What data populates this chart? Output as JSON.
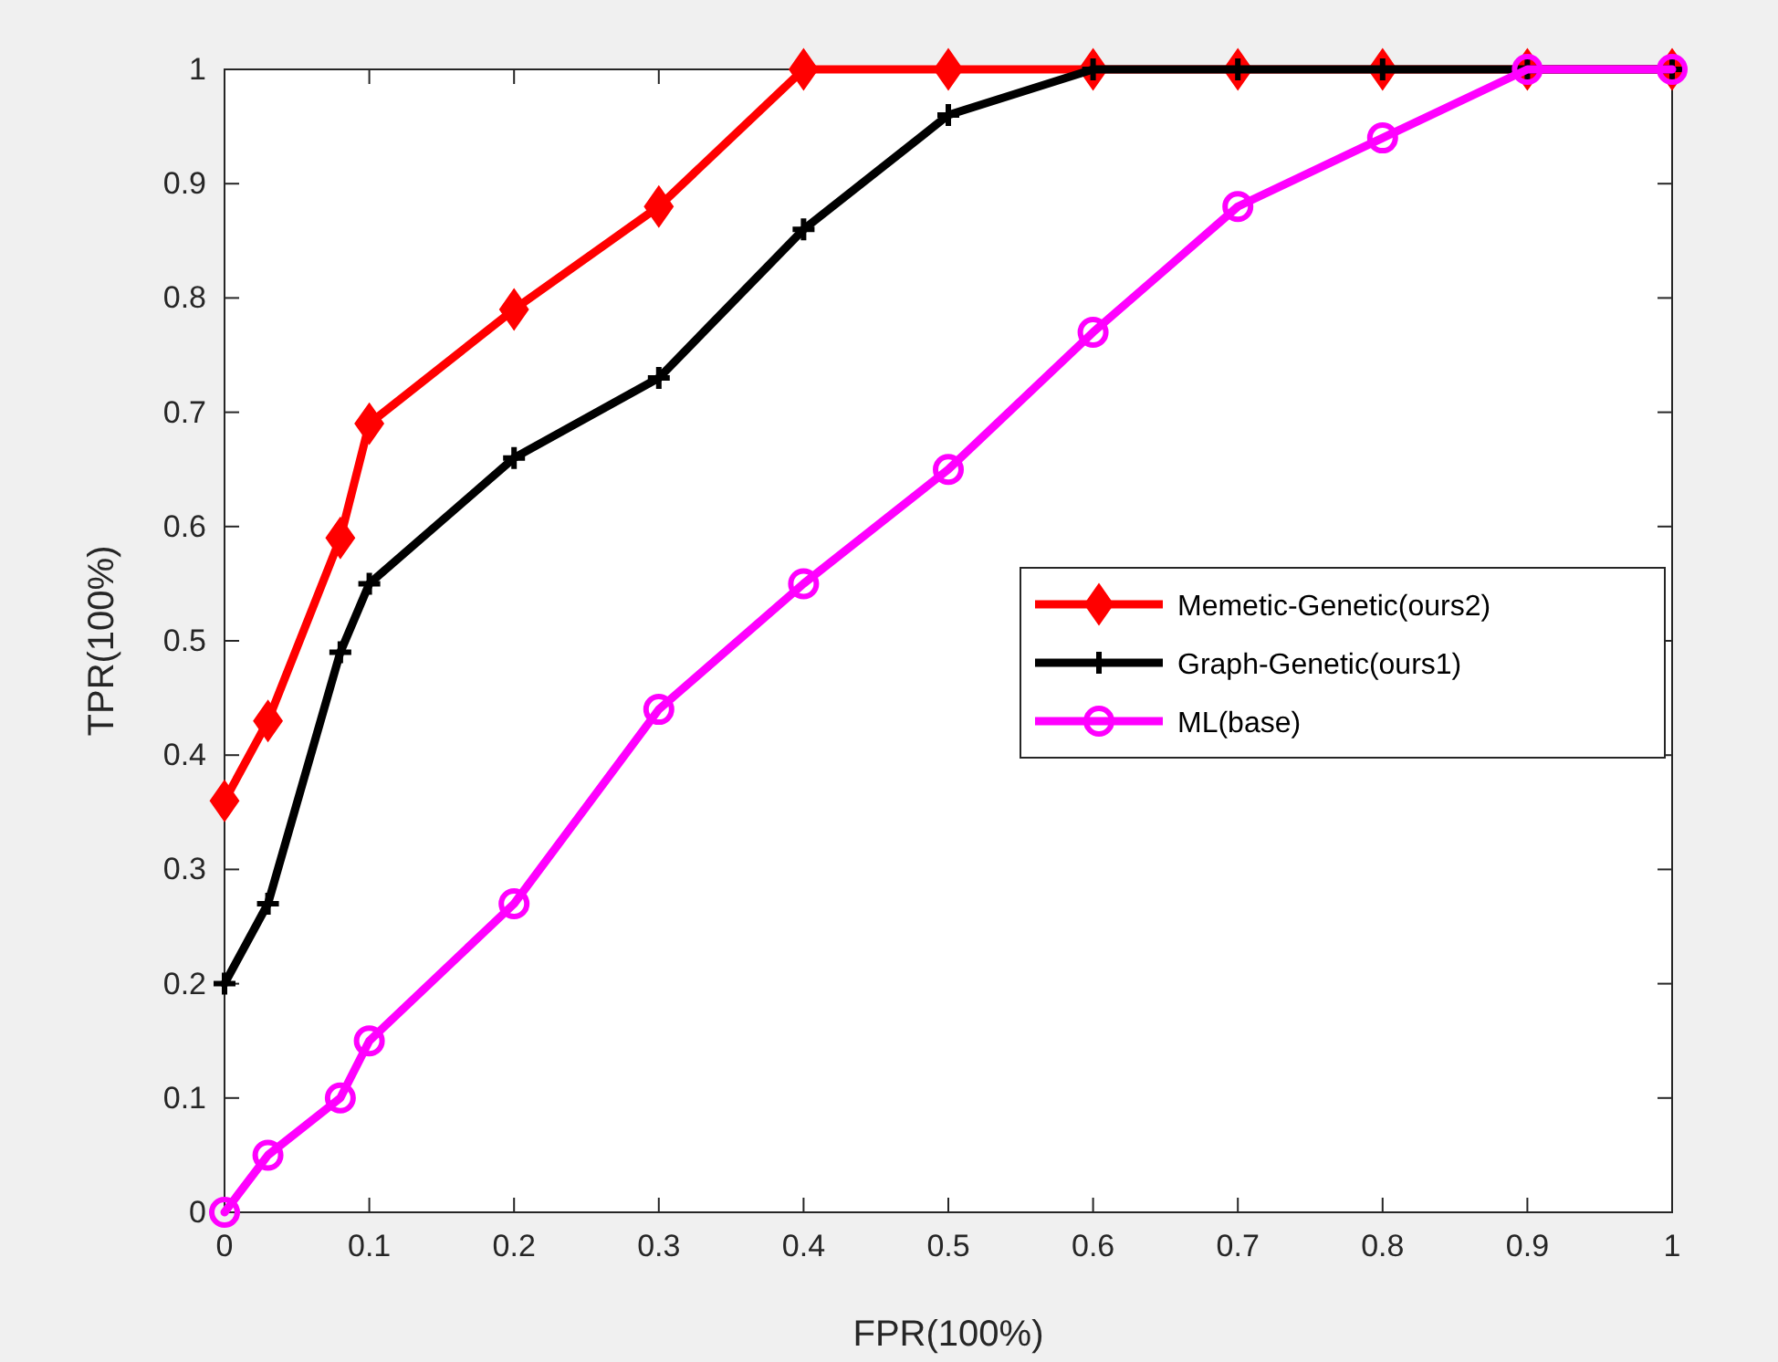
{
  "chart_data": {
    "type": "line",
    "xlabel": "FPR(100%)",
    "ylabel": "TPR(100%)",
    "xlim": [
      0,
      1
    ],
    "ylim": [
      0,
      1
    ],
    "xticks": [
      0,
      0.1,
      0.2,
      0.3,
      0.4,
      0.5,
      0.6,
      0.7,
      0.8,
      0.9,
      1
    ],
    "yticks": [
      0,
      0.1,
      0.2,
      0.3,
      0.4,
      0.5,
      0.6,
      0.7,
      0.8,
      0.9,
      1
    ],
    "grid": false,
    "legend": "right",
    "line_style": "solid",
    "x": [
      0,
      0.03,
      0.08,
      0.1,
      0.2,
      0.3,
      0.4,
      0.5,
      0.6,
      0.7,
      0.8,
      0.9,
      1
    ],
    "series": [
      {
        "name": "Memetic-Genetic(ours2)",
        "color": "#ff0000",
        "marker": "diamond",
        "values": [
          0.36,
          0.43,
          0.59,
          0.69,
          0.79,
          0.88,
          1,
          1,
          1,
          1,
          1,
          1,
          1
        ]
      },
      {
        "name": "Graph-Genetic(ours1)",
        "color": "#000000",
        "marker": "cross",
        "values": [
          0.2,
          0.27,
          0.49,
          0.55,
          0.66,
          0.73,
          0.86,
          0.96,
          1,
          1,
          1,
          1,
          1
        ]
      },
      {
        "name": "ML(base)",
        "color": "#ff00ff",
        "marker": "circle",
        "values": [
          0,
          0.05,
          0.1,
          0.15,
          0.27,
          0.44,
          0.55,
          0.65,
          0.77,
          0.88,
          0.94,
          1,
          1
        ]
      }
    ]
  }
}
